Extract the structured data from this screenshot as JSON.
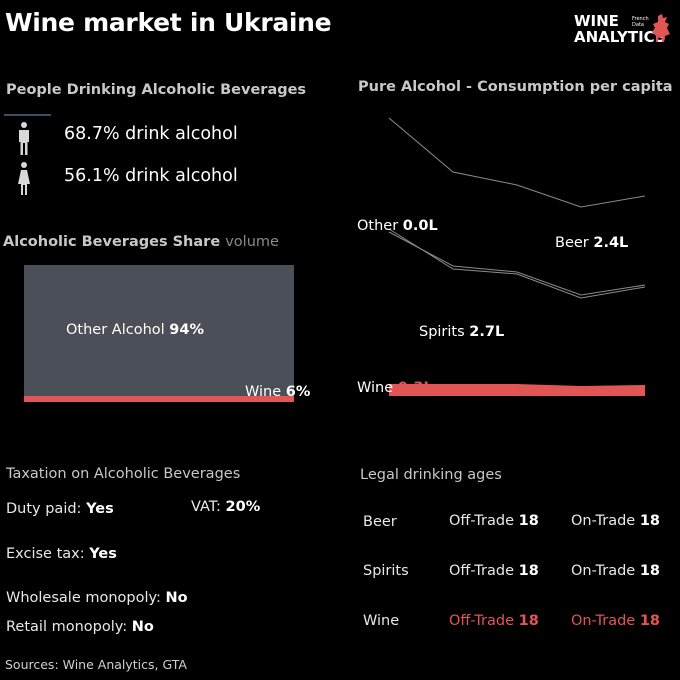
{
  "title": "Wine market in Ukraine",
  "logo": {
    "line1": "WINE",
    "line2": "ANALYTICS",
    "sub1": "French",
    "sub2": "Data"
  },
  "people": {
    "title": "People Drinking Alcoholic Beverages",
    "men": "68.7% drink alcohol",
    "women": "56.1% drink alcohol"
  },
  "share": {
    "title": "Alcoholic Beverages Share",
    "subtitle": "volume",
    "other_label": "Other Alcohol",
    "other_value": "94%",
    "wine_label": "Wine",
    "wine_value": "6%"
  },
  "consumption": {
    "title": "Pure Alcohol - Consumption per capita",
    "labels": [
      {
        "name": "Other",
        "value": "0.0L"
      },
      {
        "name": "Beer",
        "value": "2.4L"
      },
      {
        "name": "Spirits",
        "value": "2.7L"
      },
      {
        "name": "Wine",
        "value": "0.3L"
      }
    ]
  },
  "taxation": {
    "title": "Taxation on Alcoholic Beverages",
    "duty_label": "Duty paid:",
    "duty_value": "Yes",
    "vat_label": "VAT:",
    "vat_value": "20%",
    "excise_label": "Excise tax:",
    "excise_value": "Yes",
    "wholesale_label": "Wholesale monopoly:",
    "wholesale_value": "No",
    "retail_label": "Retail monopoly:",
    "retail_value": "No"
  },
  "ages": {
    "title": "Legal drinking ages",
    "rows": [
      {
        "bev": "Beer",
        "off_label": "Off-Trade",
        "off": "18",
        "on_label": "On-Trade",
        "on": "18"
      },
      {
        "bev": "Spirits",
        "off_label": "Off-Trade",
        "off": "18",
        "on_label": "On-Trade",
        "on": "18"
      },
      {
        "bev": "Wine",
        "off_label": "Off-Trade",
        "off": "18",
        "on_label": "On-Trade",
        "on": "18"
      }
    ]
  },
  "sources": "Sources: Wine Analytics, GTA",
  "colors": {
    "wine": "#e25555",
    "other": "#4a4f58",
    "line": "#8c8c8c"
  },
  "chart_data": [
    {
      "type": "bar",
      "title": "Alcoholic Beverages Share",
      "subtitle": "volume",
      "categories": [
        "Other Alcohol",
        "Wine"
      ],
      "values": [
        94,
        6
      ],
      "unit": "%"
    },
    {
      "type": "area",
      "title": "Pure Alcohol - Consumption per capita",
      "unit": "L",
      "stacked": true,
      "points": 5,
      "series": [
        {
          "name": "Wine",
          "values": [
            0.35,
            0.35,
            0.35,
            0.3,
            0.33
          ],
          "label": "0.3L"
        },
        {
          "name": "Spirits",
          "values": [
            3.9,
            3.0,
            2.95,
            2.5,
            2.7
          ],
          "label": "2.7L"
        },
        {
          "name": "Other",
          "values": [
            0.05,
            0.04,
            0.04,
            0.03,
            0.0
          ],
          "label": "0.0L"
        },
        {
          "name": "Beer",
          "values": [
            2.6,
            2.4,
            2.4,
            2.3,
            2.4
          ],
          "label": "2.4L"
        }
      ]
    }
  ]
}
